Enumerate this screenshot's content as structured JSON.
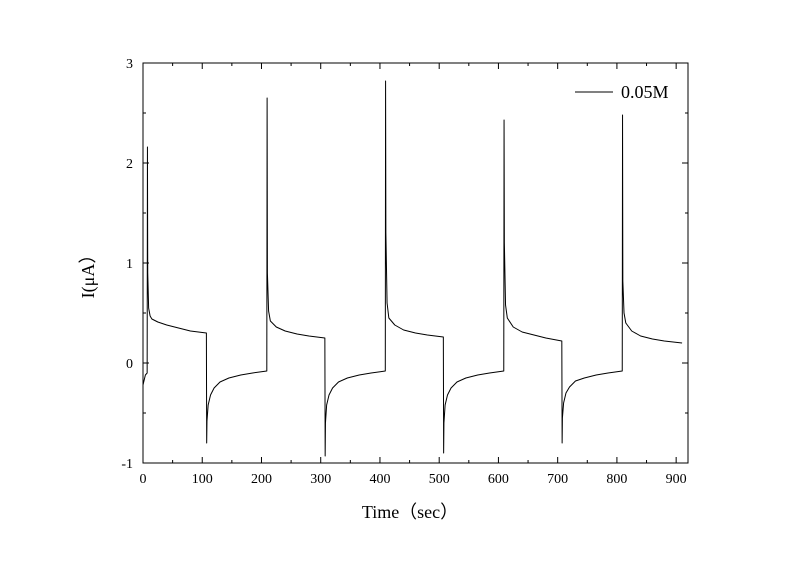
{
  "chart_data": {
    "type": "line",
    "xlabel": "Time（sec）",
    "ylabel": "I(μA）",
    "xlim": [
      0,
      920
    ],
    "ylim": [
      -1,
      3
    ],
    "xticks": [
      0,
      100,
      200,
      300,
      400,
      500,
      600,
      700,
      800,
      900
    ],
    "yticks": [
      -1,
      0,
      1,
      2,
      3
    ],
    "xtick_labels": [
      "0",
      "100",
      "200",
      "300",
      "400",
      "500",
      "600",
      "700",
      "800",
      "900"
    ],
    "ytick_labels": [
      "-1",
      "0",
      "1",
      "2",
      "3"
    ],
    "legend_position": "top-right",
    "grid": false,
    "line_color": "#000000",
    "series": [
      {
        "name": "0.05M",
        "x": [
          0,
          4,
          7,
          7.5,
          8,
          9.5,
          12,
          15,
          25,
          40,
          60,
          80,
          107,
          107.5,
          108,
          110,
          114,
          120,
          130,
          145,
          165,
          185,
          209,
          209.5,
          210,
          212,
          215,
          225,
          240,
          260,
          280,
          307,
          307.5,
          308,
          310,
          314,
          320,
          330,
          345,
          365,
          385,
          409,
          409.5,
          410,
          412,
          415,
          425,
          440,
          460,
          480,
          507,
          507.5,
          508,
          510,
          514,
          520,
          530,
          545,
          565,
          585,
          609,
          609.5,
          610,
          612,
          615,
          625,
          640,
          660,
          680,
          707,
          707.5,
          708,
          710,
          714,
          720,
          730,
          745,
          765,
          785,
          809,
          809.5,
          810,
          812,
          815,
          825,
          840,
          860,
          880,
          910
        ],
        "y": [
          -0.22,
          -0.12,
          -0.1,
          2.16,
          0.9,
          0.55,
          0.47,
          0.44,
          0.41,
          0.38,
          0.35,
          0.32,
          0.3,
          -0.8,
          -0.58,
          -0.42,
          -0.32,
          -0.25,
          -0.19,
          -0.15,
          -0.12,
          -0.1,
          -0.08,
          2.65,
          0.9,
          0.52,
          0.42,
          0.36,
          0.32,
          0.29,
          0.27,
          0.25,
          -0.93,
          -0.6,
          -0.42,
          -0.32,
          -0.25,
          -0.19,
          -0.15,
          -0.12,
          -0.1,
          -0.08,
          2.82,
          1.3,
          0.6,
          0.45,
          0.38,
          0.33,
          0.3,
          0.28,
          0.26,
          -0.9,
          -0.6,
          -0.42,
          -0.32,
          -0.25,
          -0.19,
          -0.15,
          -0.12,
          -0.1,
          -0.08,
          2.43,
          1.2,
          0.58,
          0.45,
          0.36,
          0.31,
          0.28,
          0.25,
          0.22,
          -0.8,
          -0.55,
          -0.4,
          -0.3,
          -0.24,
          -0.18,
          -0.15,
          -0.12,
          -0.1,
          -0.08,
          2.48,
          0.82,
          0.5,
          0.4,
          0.32,
          0.27,
          0.24,
          0.22,
          0.2
        ]
      }
    ]
  }
}
